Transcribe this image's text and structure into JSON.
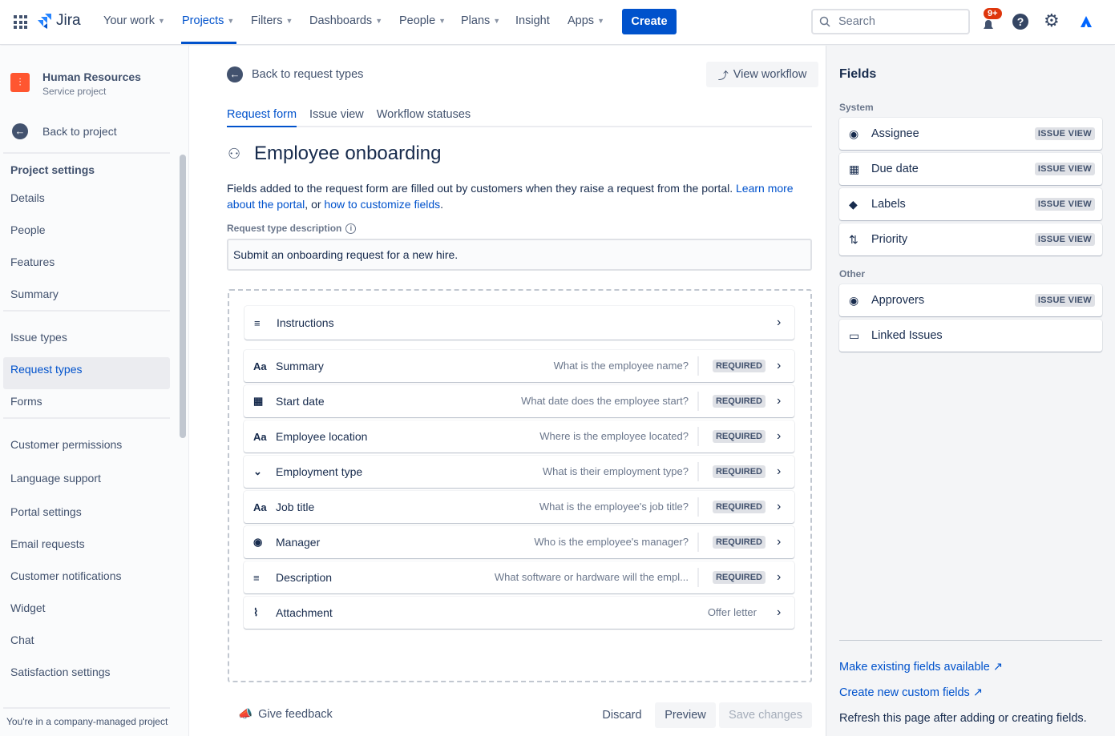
{
  "nav": {
    "logo": "Jira",
    "items": [
      {
        "label": "Your work",
        "chev": true
      },
      {
        "label": "Projects",
        "chev": true,
        "active": true
      },
      {
        "label": "Filters",
        "chev": true
      },
      {
        "label": "Dashboards",
        "chev": true
      },
      {
        "label": "People",
        "chev": true
      },
      {
        "label": "Plans",
        "chev": true
      },
      {
        "label": "Insight",
        "chev": false
      },
      {
        "label": "Apps",
        "chev": true
      }
    ],
    "create": "Create",
    "search_placeholder": "Search",
    "notifications_badge": "9+"
  },
  "sidebar": {
    "project_name": "Human Resources",
    "project_type": "Service project",
    "back": "Back to project",
    "heading": "Project settings",
    "items": [
      "Details",
      "People",
      "Features",
      "Summary",
      "Issue types",
      "Request types",
      "Forms",
      "Customer permissions",
      "Language support",
      "Portal settings",
      "Email requests",
      "Customer notifications",
      "Widget",
      "Chat",
      "Satisfaction settings"
    ],
    "selected": "Request types",
    "footer": "You're in a company-managed project"
  },
  "main": {
    "back": "Back to request types",
    "view_workflow": "View workflow",
    "tabs": [
      "Request form",
      "Issue view",
      "Workflow statuses"
    ],
    "active_tab": "Request form",
    "title": "Employee onboarding",
    "desc_pre": "Fields added to the request form are filled out by customers when they raise a request from the portal. ",
    "desc_link1": "Learn more about the portal",
    "desc_mid": ", or ",
    "desc_link2": "how to customize fields",
    "desc_post": ".",
    "field_label": "Request type description",
    "field_value": "Submit an onboarding request for a new hire.",
    "instructions": "Instructions",
    "rows": [
      {
        "icon": "text-icon",
        "label": "Summary",
        "hint": "What is the employee name?",
        "required": "REQUIRED"
      },
      {
        "icon": "calendar-icon",
        "label": "Start date",
        "hint": "What date does the employee start?",
        "required": "REQUIRED"
      },
      {
        "icon": "text-icon",
        "label": "Employee location",
        "hint": "Where is the employee located?",
        "required": "REQUIRED"
      },
      {
        "icon": "dropdown-icon",
        "label": "Employment type",
        "hint": "What is their employment type?",
        "required": "REQUIRED"
      },
      {
        "icon": "text-icon",
        "label": "Job title",
        "hint": "What is the employee's job title?",
        "required": "REQUIRED"
      },
      {
        "icon": "user-icon",
        "label": "Manager",
        "hint": "Who is the employee's manager?",
        "required": "REQUIRED"
      },
      {
        "icon": "paragraph-icon",
        "label": "Description",
        "hint": "What software or hardware will the empl...",
        "required": "REQUIRED"
      },
      {
        "icon": "attachment-icon",
        "label": "Attachment",
        "hint": "Offer letter",
        "required": null
      }
    ],
    "feedback": "Give feedback",
    "discard": "Discard",
    "preview": "Preview",
    "save": "Save changes"
  },
  "fields": {
    "title": "Fields",
    "system_label": "System",
    "system": [
      {
        "icon": "user-icon",
        "label": "Assignee",
        "tag": "ISSUE VIEW"
      },
      {
        "icon": "calendar-icon",
        "label": "Due date",
        "tag": "ISSUE VIEW"
      },
      {
        "icon": "tag-icon",
        "label": "Labels",
        "tag": "ISSUE VIEW"
      },
      {
        "icon": "priority-icon",
        "label": "Priority",
        "tag": "ISSUE VIEW"
      }
    ],
    "other_label": "Other",
    "other": [
      {
        "icon": "user-icon",
        "label": "Approvers",
        "tag": "ISSUE VIEW"
      },
      {
        "icon": "link-icon",
        "label": "Linked Issues",
        "tag": null
      }
    ],
    "link1": "Make existing fields available",
    "link2": "Create new custom fields",
    "note": "Refresh this page after adding or creating fields."
  },
  "colors": {
    "brand": "#0052cc",
    "badge": "#de350b",
    "project_icon": "#ff5630"
  }
}
